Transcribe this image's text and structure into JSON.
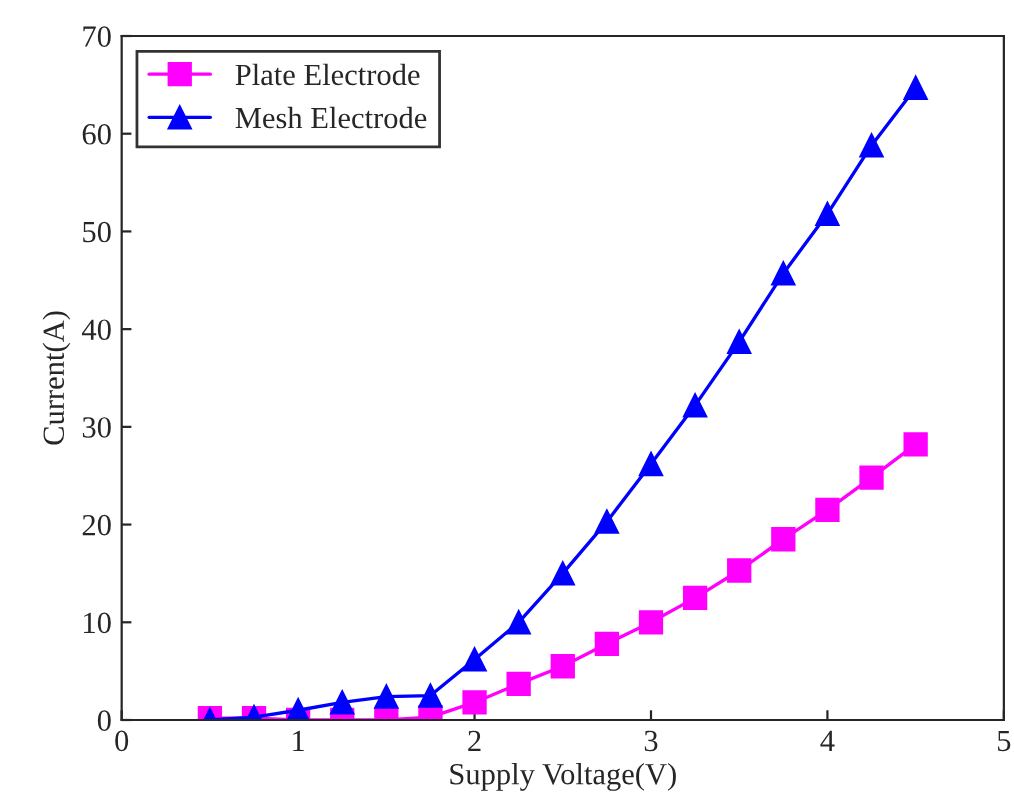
{
  "chart_data": {
    "type": "line",
    "xlabel": "Supply Voltage(V)",
    "ylabel": "Current(A)",
    "x": [
      0.5,
      0.75,
      1,
      1.25,
      1.5,
      1.75,
      2,
      2.25,
      2.5,
      2.75,
      3,
      3.25,
      3.5,
      3.75,
      4,
      4.25,
      4.5
    ],
    "series": [
      {
        "name": "Plate Electrode",
        "color": "#ff00ff",
        "marker": "square",
        "values": [
          0.2,
          0.2,
          0,
          0,
          0,
          0.3,
          1.8,
          3.7,
          5.5,
          7.8,
          10,
          12.5,
          15.3,
          18.5,
          21.5,
          24.8,
          28.2
        ]
      },
      {
        "name": "Mesh Electrode",
        "color": "#0000ff",
        "marker": "triangle",
        "values": [
          0,
          0.3,
          1,
          1.8,
          2.4,
          2.5,
          6.2,
          10,
          15,
          20.3,
          26.2,
          32.2,
          38.7,
          45.7,
          51.8,
          58.8,
          64.7
        ]
      }
    ],
    "xlim": [
      0,
      5
    ],
    "xticks": [
      0,
      1,
      2,
      3,
      4,
      5
    ],
    "ylim": [
      0,
      70
    ],
    "yticks": [
      0,
      10,
      20,
      30,
      40,
      50,
      60,
      70
    ],
    "grid": false,
    "legend": "top left",
    "line_style": "solid"
  }
}
